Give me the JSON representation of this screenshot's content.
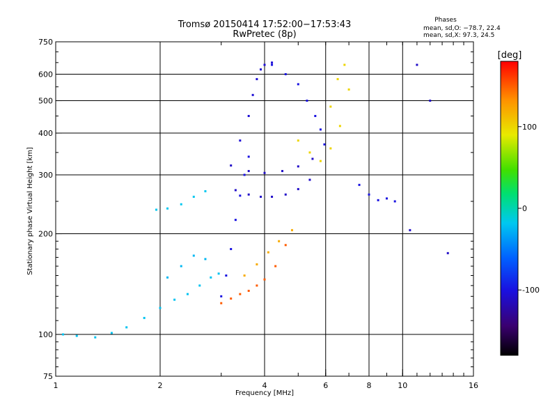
{
  "chart_data": {
    "type": "scatter",
    "title": "Tromsø 20150414 17:52:00−17:53:43",
    "subtitle": "RwPretec (8p)",
    "stats": {
      "heading": "Phases",
      "line_o": "mean, sd,O: −78.7, 22.4",
      "line_x": "mean, sd,X:  97.3, 24.5"
    },
    "xlabel": "Frequency [MHz]",
    "ylabel": "Stationary phase Virtual Height [km]",
    "xscale": "log",
    "yscale": "log",
    "xlim": [
      1,
      16
    ],
    "ylim": [
      75,
      750
    ],
    "xticks": [
      1,
      2,
      4,
      6,
      8,
      10,
      16
    ],
    "yticks": [
      75,
      100,
      200,
      300,
      400,
      500,
      600,
      750
    ],
    "x_gridlines": [
      2,
      4,
      6,
      8,
      10
    ],
    "y_gridlines": [
      100,
      200,
      300,
      400,
      500,
      600
    ],
    "grid": true,
    "colorbar": {
      "label": "[deg]",
      "range": [
        -180,
        180
      ],
      "ticks": [
        100,
        0,
        -100
      ],
      "colormap": [
        "#000000",
        "#3a0070",
        "#1a10e0",
        "#0060ff",
        "#00c8f0",
        "#00e070",
        "#40e000",
        "#e8ea00",
        "#ff9000",
        "#ff0000"
      ]
    },
    "traces": [
      {
        "name": "",
        "phase": -20,
        "x": [
          1.05,
          1.15,
          1.3,
          1.45,
          1.6,
          1.8,
          2.0,
          2.2,
          2.4,
          2.6,
          2.8,
          2.95
        ],
        "y": [
          100,
          99,
          98,
          101,
          105,
          112,
          120,
          127,
          132,
          140,
          148,
          152
        ]
      },
      {
        "name": "",
        "phase": -18,
        "x": [
          1.95,
          2.1,
          2.3,
          2.5,
          2.7
        ],
        "y": [
          236,
          238,
          245,
          258,
          268
        ]
      },
      {
        "name": "",
        "phase": -25,
        "x": [
          2.1,
          2.3,
          2.5,
          2.7
        ],
        "y": [
          148,
          160,
          172,
          168
        ]
      },
      {
        "name": "",
        "phase": 150,
        "x": [
          3.0,
          3.2,
          3.4,
          3.6,
          3.8,
          4.0,
          4.3,
          4.6
        ],
        "y": [
          124,
          128,
          132,
          135,
          140,
          146,
          160,
          185
        ]
      },
      {
        "name": "",
        "phase": 120,
        "x": [
          3.5,
          3.8,
          4.1,
          4.4,
          4.8
        ],
        "y": [
          150,
          162,
          176,
          190,
          205
        ]
      },
      {
        "name": "",
        "phase": -100,
        "x": [
          3.0,
          3.1,
          3.2,
          3.3,
          3.4,
          3.5,
          3.6
        ],
        "y": [
          130,
          150,
          180,
          220,
          260,
          300,
          340
        ]
      },
      {
        "name": "",
        "phase": -110,
        "x": [
          3.3,
          3.6,
          3.9,
          4.2,
          4.6,
          5.0,
          5.4
        ],
        "y": [
          270,
          262,
          258,
          258,
          262,
          272,
          290
        ]
      },
      {
        "name": "",
        "phase": -110,
        "x": [
          3.2,
          3.6,
          4.0,
          4.5,
          5.0,
          5.5
        ],
        "y": [
          320,
          308,
          304,
          308,
          318,
          335
        ]
      },
      {
        "name": "",
        "phase": -105,
        "x": [
          3.4,
          3.6,
          3.7,
          3.8,
          3.9,
          4.0,
          4.2
        ],
        "y": [
          380,
          450,
          520,
          580,
          620,
          640,
          650
        ]
      },
      {
        "name": "",
        "phase": -100,
        "x": [
          4.2,
          4.6,
          5.0,
          5.3,
          5.6,
          5.8,
          5.95
        ],
        "y": [
          640,
          600,
          560,
          500,
          450,
          410,
          370
        ]
      },
      {
        "name": "",
        "phase": 100,
        "x": [
          5.0,
          5.4,
          5.8,
          6.2,
          6.6,
          7.0
        ],
        "y": [
          380,
          350,
          330,
          360,
          420,
          540
        ]
      },
      {
        "name": "",
        "phase": 100,
        "x": [
          6.2,
          6.5,
          6.8
        ],
        "y": [
          480,
          580,
          640
        ]
      },
      {
        "name": "",
        "phase": -100,
        "x": [
          7.5,
          8.0,
          8.5,
          9.0,
          9.5
        ],
        "y": [
          280,
          262,
          252,
          255,
          250
        ]
      },
      {
        "name": "",
        "phase": -110,
        "x": [
          10.5,
          11.0,
          12.0,
          13.5
        ],
        "y": [
          205,
          640,
          500,
          175
        ]
      }
    ]
  }
}
